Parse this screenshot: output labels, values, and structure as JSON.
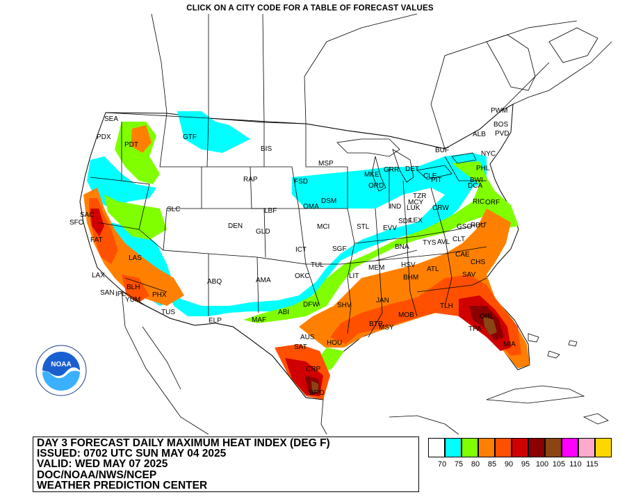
{
  "header": {
    "instruction": "CLICK ON A CITY CODE FOR A TABLE OF FORECAST VALUES"
  },
  "title": {
    "line1": "DAY 3 FORECAST DAILY MAXIMUM HEAT INDEX (DEG F)",
    "line2": "ISSUED: 0702 UTC SUN MAY 04 2025",
    "line3": "VALID: WED MAY 07 2025",
    "line4": "DOC/NOAA/NWS/NCEP",
    "line5": "WEATHER PREDICTION CENTER"
  },
  "logo": {
    "text": "NOAA",
    "icon": "noaa-logo-icon"
  },
  "legend": {
    "levels": [
      {
        "color": "#ffffff",
        "label": "70"
      },
      {
        "color": "#00ffff",
        "label": "75"
      },
      {
        "color": "#80ff00",
        "label": "80"
      },
      {
        "color": "#ff8000",
        "label": "85"
      },
      {
        "color": "#ff5000",
        "label": "90"
      },
      {
        "color": "#d00000",
        "label": "95"
      },
      {
        "color": "#8b0000",
        "label": "100"
      },
      {
        "color": "#8b4513",
        "label": "105"
      },
      {
        "color": "#ff00ff",
        "label": "110"
      },
      {
        "color": "#ffaacc",
        "label": "115"
      },
      {
        "color": "#ffd700",
        "label": ""
      }
    ]
  },
  "cities": [
    {
      "code": "SEA"
    },
    {
      "code": "PDX"
    },
    {
      "code": "PDT"
    },
    {
      "code": "GTF"
    },
    {
      "code": "BIS"
    },
    {
      "code": "MSP"
    },
    {
      "code": "PWM"
    },
    {
      "code": "BOS"
    },
    {
      "code": "PVD"
    },
    {
      "code": "ALB"
    },
    {
      "code": "BUF"
    },
    {
      "code": "NYC"
    },
    {
      "code": "PHL"
    },
    {
      "code": "DCA"
    },
    {
      "code": "BWI"
    },
    {
      "code": "CLE"
    },
    {
      "code": "PIT"
    },
    {
      "code": "DET"
    },
    {
      "code": "GRR"
    },
    {
      "code": "MKE"
    },
    {
      "code": "ORD"
    },
    {
      "code": "FSD"
    },
    {
      "code": "RAP"
    },
    {
      "code": "DSM"
    },
    {
      "code": "OMA"
    },
    {
      "code": "SAC"
    },
    {
      "code": "SFO"
    },
    {
      "code": "SLC"
    },
    {
      "code": "LBF"
    },
    {
      "code": "DEN"
    },
    {
      "code": "GLD"
    },
    {
      "code": "MCI"
    },
    {
      "code": "STL"
    },
    {
      "code": "EVV"
    },
    {
      "code": "IND"
    },
    {
      "code": "MCY"
    },
    {
      "code": "LUK"
    },
    {
      "code": "TZR"
    },
    {
      "code": "CRW"
    },
    {
      "code": "SDF"
    },
    {
      "code": "LEX"
    },
    {
      "code": "RIC"
    },
    {
      "code": "ORF"
    },
    {
      "code": "GSO"
    },
    {
      "code": "RDU"
    },
    {
      "code": "FAT"
    },
    {
      "code": "LAS"
    },
    {
      "code": "LAX"
    },
    {
      "code": "SAN"
    },
    {
      "code": "IPL"
    },
    {
      "code": "BLH"
    },
    {
      "code": "YUM"
    },
    {
      "code": "PHX"
    },
    {
      "code": "TUS"
    },
    {
      "code": "ABQ"
    },
    {
      "code": "AMA"
    },
    {
      "code": "ICT"
    },
    {
      "code": "SGF"
    },
    {
      "code": "TUL"
    },
    {
      "code": "OKC"
    },
    {
      "code": "BNA"
    },
    {
      "code": "TYS"
    },
    {
      "code": "AVL"
    },
    {
      "code": "CLT"
    },
    {
      "code": "CAE"
    },
    {
      "code": "CHS"
    },
    {
      "code": "SAV"
    },
    {
      "code": "ATL"
    },
    {
      "code": "HSV"
    },
    {
      "code": "BHM"
    },
    {
      "code": "MEM"
    },
    {
      "code": "LIT"
    },
    {
      "code": "DFW"
    },
    {
      "code": "SHV"
    },
    {
      "code": "ABI"
    },
    {
      "code": "MAF"
    },
    {
      "code": "ELP"
    },
    {
      "code": "JAN"
    },
    {
      "code": "MOB"
    },
    {
      "code": "BTR"
    },
    {
      "code": "MSY"
    },
    {
      "code": "TLH"
    },
    {
      "code": "ORL"
    },
    {
      "code": "TPA"
    },
    {
      "code": "MIA"
    },
    {
      "code": "AUS"
    },
    {
      "code": "SAT"
    },
    {
      "code": "HOU"
    },
    {
      "code": "CRP"
    },
    {
      "code": "BRO"
    }
  ]
}
